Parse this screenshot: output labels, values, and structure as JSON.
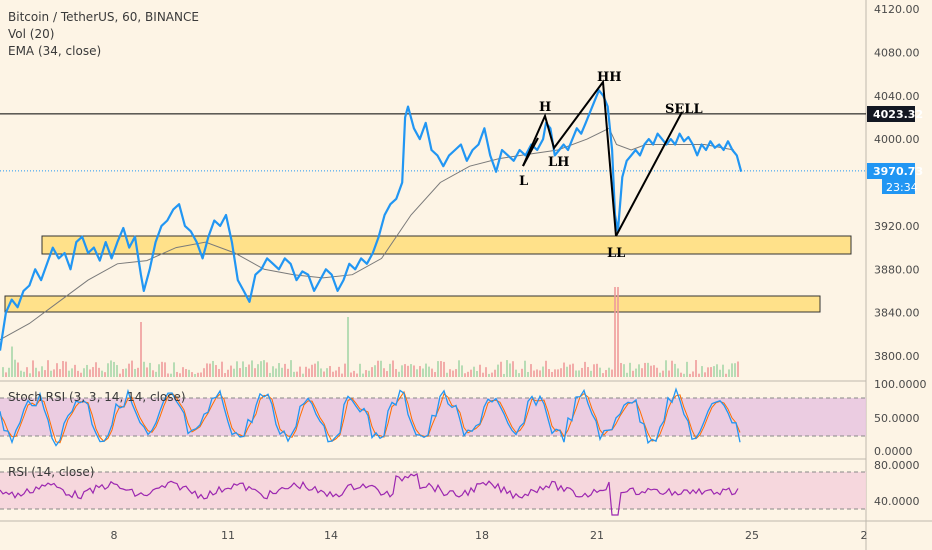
{
  "legend": {
    "symbol_line": "Bitcoin / TetherUS, 60, BINANCE",
    "vol_label": "Vol (20)",
    "ema_label": "EMA (34, close)"
  },
  "panes": {
    "stoch_label": "Stoch RSI (3, 3, 14, 14, close)",
    "rsi_label": "RSI (14, close)"
  },
  "price_axis": {
    "ticks": [
      "4120.00",
      "4080.00",
      "4040.00",
      "4000.00",
      "3920.00",
      "3880.00",
      "3840.00",
      "3800.00"
    ],
    "stoch_ticks": [
      "100.0000",
      "50.0000",
      "0.0000"
    ],
    "rsi_ticks": [
      "80.0000",
      "40.0000"
    ]
  },
  "price_tags": {
    "resistance": "4023.32",
    "last": "3970.73",
    "countdown": "23:34"
  },
  "time_axis": {
    "labels": [
      "8",
      "11",
      "14",
      "18",
      "21",
      "25",
      "2"
    ]
  },
  "annotations": {
    "hh": "HH",
    "h": "H",
    "sell": "SELL",
    "l": "L",
    "lh": "LH",
    "ll": "LL"
  },
  "colors": {
    "background": "#fdf4e5",
    "price_line": "#2196f3",
    "ema_line": "#7a7a7a",
    "zone_fill": "#ffe18a",
    "stoch_band": "#e8c4e0",
    "rsi_band": "#f5d4dc",
    "rsi_line": "#9c27b0",
    "stoch_k": "#2196f3",
    "stoch_d": "#ff6d00",
    "vol_up": "#a5d6a7",
    "vol_down": "#ef9a9a",
    "last_tag": "#2196f3",
    "resistance_tag": "#131722"
  },
  "chart_data": {
    "type": "line",
    "title": "Bitcoin / TetherUS, 60, BINANCE",
    "series": [
      {
        "name": "Bitcoin / TetherUS",
        "points": [
          [
            0,
            3805
          ],
          [
            0.4,
            3840
          ],
          [
            0.8,
            3852
          ],
          [
            1.2,
            3845
          ],
          [
            1.6,
            3860
          ],
          [
            2,
            3865
          ],
          [
            2.4,
            3880
          ],
          [
            2.8,
            3870
          ],
          [
            3.2,
            3885
          ],
          [
            3.6,
            3900
          ],
          [
            4,
            3890
          ],
          [
            4.4,
            3895
          ],
          [
            4.8,
            3880
          ],
          [
            5.2,
            3905
          ],
          [
            5.6,
            3910
          ],
          [
            6,
            3895
          ],
          [
            6.4,
            3900
          ],
          [
            6.8,
            3888
          ],
          [
            7.2,
            3905
          ],
          [
            7.6,
            3890
          ],
          [
            8,
            3905
          ],
          [
            8.4,
            3918
          ],
          [
            8.8,
            3900
          ],
          [
            9.2,
            3910
          ],
          [
            9.6,
            3875
          ],
          [
            9.8,
            3860
          ],
          [
            10.2,
            3880
          ],
          [
            10.6,
            3905
          ],
          [
            11,
            3920
          ],
          [
            11.4,
            3925
          ],
          [
            11.8,
            3935
          ],
          [
            12.2,
            3940
          ],
          [
            12.6,
            3920
          ],
          [
            13,
            3915
          ],
          [
            13.4,
            3905
          ],
          [
            13.8,
            3890
          ],
          [
            14.2,
            3910
          ],
          [
            14.6,
            3925
          ],
          [
            15,
            3920
          ],
          [
            15.4,
            3930
          ],
          [
            15.8,
            3905
          ],
          [
            16.2,
            3870
          ],
          [
            16.6,
            3860
          ],
          [
            17,
            3850
          ],
          [
            17.4,
            3875
          ],
          [
            17.8,
            3880
          ],
          [
            18.2,
            3890
          ],
          [
            18.6,
            3885
          ],
          [
            19,
            3880
          ],
          [
            19.4,
            3890
          ],
          [
            19.8,
            3885
          ],
          [
            20.2,
            3870
          ],
          [
            20.6,
            3878
          ],
          [
            21,
            3875
          ],
          [
            21.4,
            3860
          ],
          [
            21.8,
            3870
          ],
          [
            22.2,
            3880
          ],
          [
            22.6,
            3875
          ],
          [
            23,
            3860
          ],
          [
            23.4,
            3870
          ],
          [
            23.8,
            3885
          ],
          [
            24.2,
            3880
          ],
          [
            24.6,
            3890
          ],
          [
            25,
            3885
          ],
          [
            25.4,
            3895
          ],
          [
            25.8,
            3910
          ],
          [
            26.2,
            3930
          ],
          [
            26.6,
            3940
          ],
          [
            27,
            3945
          ],
          [
            27.4,
            3960
          ],
          [
            27.6,
            4020
          ],
          [
            27.8,
            4030
          ],
          [
            28.2,
            4010
          ],
          [
            28.6,
            4000
          ],
          [
            29,
            4015
          ],
          [
            29.4,
            3990
          ],
          [
            29.8,
            3985
          ],
          [
            30.2,
            3975
          ],
          [
            30.6,
            3985
          ],
          [
            31,
            3990
          ],
          [
            31.4,
            3995
          ],
          [
            31.8,
            3980
          ],
          [
            32.2,
            3990
          ],
          [
            32.6,
            3995
          ],
          [
            33,
            4010
          ],
          [
            33.4,
            3985
          ],
          [
            33.8,
            3970
          ],
          [
            34.2,
            3990
          ],
          [
            34.6,
            3985
          ],
          [
            35,
            3980
          ],
          [
            35.4,
            3990
          ],
          [
            35.8,
            3985
          ],
          [
            36.2,
            3995
          ],
          [
            36.6,
            3990
          ],
          [
            37,
            4000
          ],
          [
            37.2,
            4015
          ],
          [
            37.5,
            4010
          ],
          [
            37.8,
            3985
          ],
          [
            38.1,
            3990
          ],
          [
            38.4,
            3995
          ],
          [
            38.7,
            3990
          ],
          [
            39,
            4000
          ],
          [
            39.3,
            4010
          ],
          [
            39.6,
            4005
          ],
          [
            39.9,
            4015
          ],
          [
            40.2,
            4025
          ],
          [
            40.5,
            4035
          ],
          [
            40.8,
            4045
          ],
          [
            41.1,
            4040
          ],
          [
            41.4,
            4030
          ],
          [
            41.7,
            3990
          ],
          [
            41.9,
            3930
          ],
          [
            42.1,
            3915
          ],
          [
            42.4,
            3965
          ],
          [
            42.7,
            3980
          ],
          [
            43,
            3985
          ],
          [
            43.3,
            3990
          ],
          [
            43.6,
            3985
          ],
          [
            43.9,
            3995
          ],
          [
            44.2,
            4000
          ],
          [
            44.5,
            3995
          ],
          [
            44.8,
            4005
          ],
          [
            45.1,
            4000
          ],
          [
            45.4,
            3995
          ],
          [
            45.7,
            4000
          ],
          [
            46,
            3995
          ],
          [
            46.3,
            4005
          ],
          [
            46.6,
            3998
          ],
          [
            46.9,
            4002
          ],
          [
            47.2,
            3995
          ],
          [
            47.5,
            3985
          ],
          [
            47.8,
            3995
          ],
          [
            48.1,
            3990
          ],
          [
            48.4,
            3998
          ],
          [
            48.7,
            3992
          ],
          [
            49,
            3995
          ],
          [
            49.3,
            3990
          ],
          [
            49.6,
            3998
          ],
          [
            49.9,
            3990
          ],
          [
            50.2,
            3985
          ],
          [
            50.5,
            3970
          ]
        ]
      },
      {
        "name": "EMA (34, close)",
        "points": [
          [
            0,
            3815
          ],
          [
            2,
            3830
          ],
          [
            4,
            3850
          ],
          [
            6,
            3870
          ],
          [
            8,
            3885
          ],
          [
            10,
            3888
          ],
          [
            12,
            3900
          ],
          [
            14,
            3905
          ],
          [
            16,
            3895
          ],
          [
            18,
            3880
          ],
          [
            20,
            3875
          ],
          [
            22,
            3872
          ],
          [
            24,
            3875
          ],
          [
            26,
            3890
          ],
          [
            28,
            3930
          ],
          [
            30,
            3960
          ],
          [
            32,
            3975
          ],
          [
            34,
            3982
          ],
          [
            36,
            3986
          ],
          [
            38,
            3990
          ],
          [
            40,
            4000
          ],
          [
            41.5,
            4010
          ],
          [
            42,
            3995
          ],
          [
            43,
            3990
          ],
          [
            44,
            3995
          ],
          [
            46,
            3995
          ],
          [
            48,
            3995
          ],
          [
            50,
            3990
          ]
        ]
      }
    ],
    "xlabel": "",
    "ylabel": "",
    "xlim": [
      0,
      59
    ],
    "ylim": [
      3780,
      4130
    ],
    "x_ticks": [
      "8",
      "11",
      "14",
      "18",
      "21",
      "25",
      "2"
    ],
    "y_ticks": [
      "4120.00",
      "4080.00",
      "4040.00",
      "4000.00",
      "3920.00",
      "3880.00",
      "3840.00",
      "3800.00"
    ],
    "horizontal_line": 4023.32,
    "last_price": 3970.73,
    "zones": [
      {
        "from": 3890,
        "to": 3910
      },
      {
        "from": 3838,
        "to": 3854
      }
    ]
  }
}
